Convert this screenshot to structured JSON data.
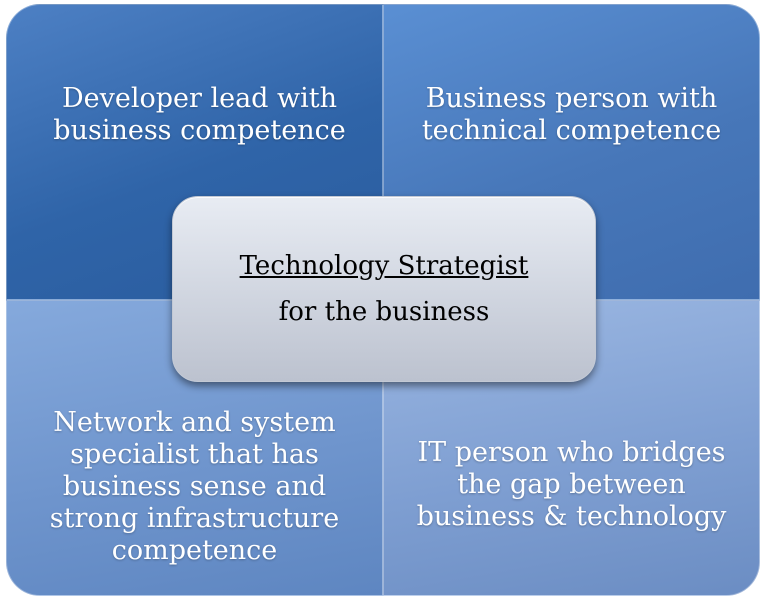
{
  "quadrants": {
    "top_left": "Developer lead with business competence",
    "top_right": "Business person with technical competence",
    "bottom_left": "Network and system specialist that has business sense and strong infrastructure competence",
    "bottom_right": "IT person who bridges the gap between business & technology"
  },
  "center": {
    "title": "Technology Strategist",
    "subtitle": "for the business"
  },
  "colors": {
    "top_left": "#2f64a8",
    "top_right": "#4777b9",
    "bottom_left": "#6f95cd",
    "bottom_right": "#7f9fd2",
    "center": "#d4d9e3"
  }
}
